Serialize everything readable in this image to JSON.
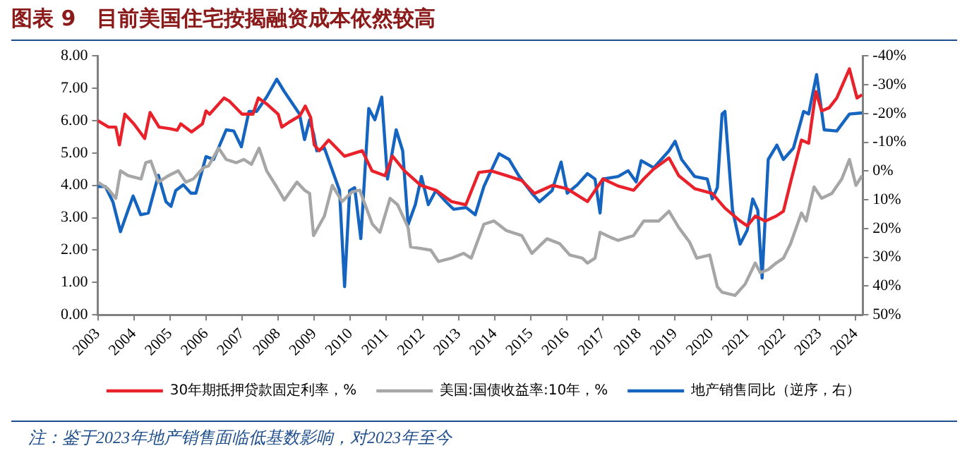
{
  "chart_data": {
    "type": "line",
    "title": "图表 9　目前美国住宅按揭融资成本依然较高",
    "annotations": [
      "注：鉴于2023年地产销售面临低基数影响，对2023年至今"
    ],
    "xlim": [
      2003,
      2024.2
    ],
    "xticks": [
      2003,
      2004,
      2005,
      2006,
      2007,
      2008,
      2009,
      2010,
      2011,
      2012,
      2013,
      2014,
      2015,
      2016,
      2017,
      2018,
      2019,
      2020,
      2021,
      2022,
      2023,
      2024
    ],
    "ylim": [
      0,
      8
    ],
    "yticks": [
      {
        "value": 0,
        "label": "0.00"
      },
      {
        "value": 1,
        "label": "1.00"
      },
      {
        "value": 2,
        "label": "2.00"
      },
      {
        "value": 3,
        "label": "3.00"
      },
      {
        "value": 4,
        "label": "4.00"
      },
      {
        "value": 5,
        "label": "5.00"
      },
      {
        "value": 6,
        "label": "6.00"
      },
      {
        "value": 7,
        "label": "7.00"
      },
      {
        "value": 8,
        "label": "8.00"
      }
    ],
    "y2lim": [
      50,
      -40
    ],
    "y2ticks": [
      {
        "value": -40,
        "label": "-40%"
      },
      {
        "value": -30,
        "label": "-30%"
      },
      {
        "value": -20,
        "label": "-20%"
      },
      {
        "value": -10,
        "label": "-10%"
      },
      {
        "value": 0,
        "label": "0%"
      },
      {
        "value": 10,
        "label": "10%"
      },
      {
        "value": 20,
        "label": "20%"
      },
      {
        "value": 30,
        "label": "30%"
      },
      {
        "value": 40,
        "label": "40%"
      },
      {
        "value": 50,
        "label": "50%"
      }
    ],
    "legend": "bottom",
    "marker": "none",
    "line_style": "solid",
    "series": [
      {
        "name": "30年期抵押贷款固定利率，%",
        "color": "#e8212b",
        "x": [
          2003,
          2003.3,
          2003.5,
          2003.6,
          2003.75,
          2004.0,
          2004.2,
          2004.3,
          2004.45,
          2004.7,
          2005.0,
          2005.2,
          2005.3,
          2005.6,
          2005.9,
          2006.0,
          2006.1,
          2006.5,
          2006.65,
          2007.0,
          2007.3,
          2007.45,
          2007.7,
          2008.0,
          2008.1,
          2008.3,
          2008.6,
          2008.75,
          2008.9,
          2009.0,
          2009.14,
          2009.4,
          2009.84,
          2010.33,
          2010.6,
          2010.96,
          2011.17,
          2011.5,
          2011.95,
          2012.37,
          2012.8,
          2013.2,
          2013.56,
          2013.9,
          2014.33,
          2014.75,
          2015.1,
          2015.6,
          2016.0,
          2016.57,
          2017.0,
          2017.42,
          2017.85,
          2018.13,
          2018.4,
          2018.83,
          2019.1,
          2019.54,
          2020.03,
          2020.38,
          2020.8,
          2021.0,
          2021.22,
          2021.5,
          2021.8,
          2022.0,
          2022.2,
          2022.5,
          2022.7,
          2022.9,
          2023.06,
          2023.27,
          2023.48,
          2023.83,
          2024.04,
          2024.18
        ],
        "values": [
          6.0,
          5.8,
          5.8,
          5.25,
          6.2,
          5.9,
          5.6,
          5.45,
          6.25,
          5.8,
          5.75,
          5.7,
          5.9,
          5.65,
          5.9,
          6.3,
          6.2,
          6.7,
          6.6,
          6.2,
          6.2,
          6.7,
          6.5,
          6.2,
          5.8,
          5.95,
          6.15,
          6.45,
          6.1,
          5.25,
          5.07,
          5.4,
          4.9,
          5.07,
          4.45,
          4.3,
          4.9,
          4.45,
          4.0,
          3.85,
          3.5,
          3.4,
          4.4,
          4.45,
          4.3,
          4.15,
          3.75,
          4.0,
          3.9,
          3.5,
          4.2,
          3.98,
          3.85,
          4.2,
          4.5,
          4.85,
          4.3,
          3.9,
          3.75,
          3.3,
          2.9,
          2.75,
          3.05,
          2.9,
          3.05,
          3.2,
          4.1,
          5.4,
          5.3,
          6.9,
          6.3,
          6.4,
          6.7,
          7.6,
          6.7,
          6.8
        ]
      },
      {
        "name": "美国:国债收益率:10年，%",
        "color": "#a6a6a6",
        "x": [
          2003,
          2003.28,
          2003.5,
          2003.63,
          2003.84,
          2004.2,
          2004.33,
          2004.47,
          2004.68,
          2004.96,
          2005.23,
          2005.44,
          2005.65,
          2005.93,
          2006.07,
          2006.35,
          2006.56,
          2006.84,
          2007.05,
          2007.26,
          2007.47,
          2007.68,
          2007.96,
          2008.17,
          2008.52,
          2008.73,
          2008.87,
          2008.98,
          2009.28,
          2009.5,
          2009.77,
          2010.05,
          2010.26,
          2010.61,
          2010.82,
          2011.1,
          2011.31,
          2011.6,
          2011.67,
          2011.95,
          2012.23,
          2012.44,
          2012.8,
          2013.14,
          2013.35,
          2013.7,
          2013.98,
          2014.33,
          2014.75,
          2015.03,
          2015.45,
          2015.8,
          2016.08,
          2016.43,
          2016.57,
          2016.78,
          2016.92,
          2017.2,
          2017.42,
          2017.85,
          2018.13,
          2018.55,
          2018.83,
          2019.1,
          2019.4,
          2019.6,
          2019.96,
          2020.17,
          2020.3,
          2020.66,
          2020.94,
          2021.22,
          2021.36,
          2021.58,
          2021.8,
          2022.0,
          2022.2,
          2022.5,
          2022.63,
          2022.85,
          2023.06,
          2023.34,
          2023.62,
          2023.83,
          2024.01,
          2024.18
        ],
        "values": [
          4.1,
          3.9,
          3.6,
          4.45,
          4.3,
          4.2,
          4.7,
          4.75,
          4.1,
          4.3,
          4.45,
          4.1,
          4.2,
          4.55,
          4.6,
          5.15,
          4.8,
          4.7,
          4.8,
          4.65,
          5.15,
          4.45,
          3.95,
          3.55,
          4.1,
          3.85,
          3.75,
          2.45,
          3.05,
          4.0,
          3.5,
          3.8,
          3.85,
          2.8,
          2.55,
          3.6,
          3.4,
          2.7,
          2.1,
          2.05,
          2.0,
          1.65,
          1.75,
          1.9,
          1.75,
          2.8,
          2.9,
          2.6,
          2.45,
          1.9,
          2.35,
          2.2,
          1.85,
          1.75,
          1.6,
          1.75,
          2.55,
          2.4,
          2.3,
          2.45,
          2.9,
          2.9,
          3.2,
          2.7,
          2.25,
          1.75,
          1.85,
          0.87,
          0.7,
          0.6,
          0.95,
          1.6,
          1.3,
          1.4,
          1.6,
          1.75,
          2.2,
          3.15,
          2.9,
          3.95,
          3.6,
          3.75,
          4.2,
          4.8,
          4.0,
          4.3
        ]
      },
      {
        "name": "地产销售同比（逆序，右）",
        "color": "#1565c0",
        "axis": "y2",
        "x": [
          2003,
          2003.21,
          2003.42,
          2003.63,
          2003.84,
          2003.98,
          2004.19,
          2004.4,
          2004.68,
          2004.89,
          2005.03,
          2005.16,
          2005.37,
          2005.58,
          2005.72,
          2006.0,
          2006.21,
          2006.56,
          2006.77,
          2006.98,
          2007.19,
          2007.4,
          2007.68,
          2007.96,
          2008.17,
          2008.59,
          2008.73,
          2008.87,
          2008.98,
          2009.07,
          2009.28,
          2009.7,
          2009.84,
          2009.98,
          2010.12,
          2010.29,
          2010.51,
          2010.68,
          2010.87,
          2011.03,
          2011.27,
          2011.45,
          2011.6,
          2011.8,
          2011.97,
          2012.16,
          2012.37,
          2012.65,
          2012.86,
          2013.21,
          2013.46,
          2013.7,
          2014.12,
          2014.4,
          2014.68,
          2015.03,
          2015.24,
          2015.59,
          2015.84,
          2016.01,
          2016.29,
          2016.57,
          2016.78,
          2016.92,
          2017.0,
          2017.42,
          2017.7,
          2017.92,
          2018.06,
          2018.41,
          2018.83,
          2019.0,
          2019.18,
          2019.54,
          2019.89,
          2020.03,
          2020.17,
          2020.3,
          2020.38,
          2020.59,
          2020.8,
          2021.0,
          2021.15,
          2021.29,
          2021.41,
          2021.58,
          2021.82,
          2022.0,
          2022.28,
          2022.56,
          2022.7,
          2022.92,
          2023.13,
          2023.48,
          2023.83,
          2024.18
        ],
        "values": [
          5.4,
          5.4,
          10.7,
          21.1,
          13.6,
          8.7,
          15.2,
          14.6,
          1.5,
          10.7,
          12.3,
          6.8,
          4.8,
          7.7,
          7.7,
          -5.0,
          -4.0,
          -14.3,
          -13.9,
          -8.4,
          -20.7,
          -20.7,
          -25.7,
          -31.9,
          -27.6,
          -19.8,
          -10.9,
          -17.8,
          -12.9,
          -7.0,
          -8.0,
          6.8,
          40.2,
          6.8,
          5.8,
          23.5,
          -21.7,
          -17.8,
          -25.7,
          2.8,
          -14.3,
          -7.0,
          18.6,
          11.7,
          1.9,
          11.7,
          6.8,
          10.7,
          13.3,
          12.7,
          15.2,
          5.4,
          -6.0,
          -4.0,
          1.9,
          7.7,
          10.7,
          6.8,
          -3.1,
          7.7,
          4.8,
          0.9,
          2.8,
          14.6,
          2.8,
          1.9,
          -0.1,
          3.8,
          -3.6,
          -1.1,
          -7.0,
          -10.3,
          -4.0,
          1.9,
          2.8,
          9.7,
          5.8,
          -19.8,
          -20.7,
          13.6,
          25.4,
          20.5,
          9.7,
          13.6,
          37.2,
          -4.0,
          -9.0,
          -4.0,
          -8.0,
          -20.7,
          -19.8,
          -33.5,
          -14.3,
          -13.9,
          -19.8,
          -20.2
        ]
      }
    ]
  }
}
